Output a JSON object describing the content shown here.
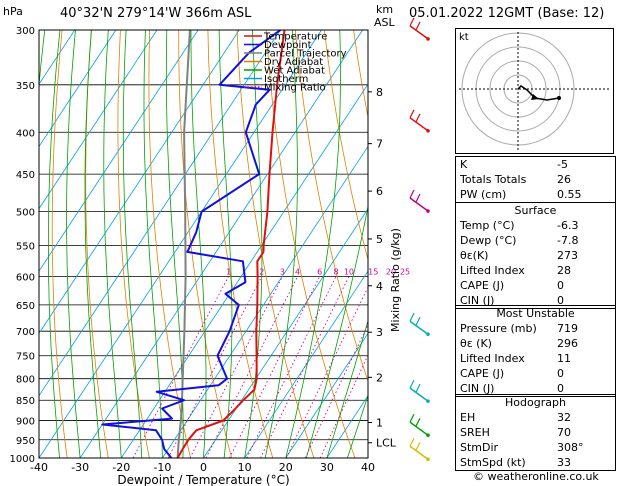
{
  "header": {
    "left_units": "hPa",
    "location": "40°32'N  279°14'W  366m  ASL",
    "km_label": "km",
    "asl_label": "ASL",
    "datetime": "05.01.2022  12GMT  (Base: 12)"
  },
  "chart_data": {
    "type": "line",
    "xlabel": "Dewpoint / Temperature (°C)",
    "ylabel": "hPa",
    "right_axis_label": "Mixing Ratio (g/kg)",
    "xlim": [
      -40,
      40
    ],
    "ylim": [
      1000,
      300
    ],
    "pressure_ticks": [
      300,
      350,
      400,
      450,
      500,
      550,
      600,
      650,
      700,
      750,
      800,
      850,
      900,
      950,
      1000
    ],
    "temperature_ticks": [
      -40,
      -30,
      -20,
      -10,
      0,
      10,
      20,
      30,
      40
    ],
    "km_ticks": [
      {
        "label": "8",
        "p": 357
      },
      {
        "label": "7",
        "p": 413
      },
      {
        "label": "6",
        "p": 472
      },
      {
        "label": "5",
        "p": 540
      },
      {
        "label": "4",
        "p": 616
      },
      {
        "label": "3",
        "p": 702
      },
      {
        "label": "2",
        "p": 797
      },
      {
        "label": "1",
        "p": 905
      },
      {
        "label": "LCL",
        "p": 958
      }
    ],
    "mixing_ratio_labels": [
      "1",
      "2",
      "3",
      "4",
      "6",
      "8",
      "10",
      "15",
      "20",
      "25"
    ],
    "legend": [
      "Temperature",
      "Dewpoint",
      "Parcel Trajectory",
      "Dry Adiabat",
      "Wet Adiabat",
      "Isotherm",
      "Mixing Ratio"
    ],
    "legend_colors": [
      "#e01010",
      "#1010e0",
      "#808080",
      "#e08000",
      "#00a000",
      "#00a0e0",
      "#d000a0"
    ],
    "temperature": [
      {
        "p": 1000,
        "t": -6.3
      },
      {
        "p": 975,
        "t": -6.5
      },
      {
        "p": 950,
        "t": -6.6
      },
      {
        "p": 925,
        "t": -6.2
      },
      {
        "p": 900,
        "t": -1.2
      },
      {
        "p": 875,
        "t": -0.3
      },
      {
        "p": 850,
        "t": 0.4
      },
      {
        "p": 825,
        "t": 1.4
      },
      {
        "p": 800,
        "t": 0.2
      },
      {
        "p": 750,
        "t": -3.5
      },
      {
        "p": 700,
        "t": -7.5
      },
      {
        "p": 650,
        "t": -11.5
      },
      {
        "p": 600,
        "t": -16
      },
      {
        "p": 575,
        "t": -18.5
      },
      {
        "p": 560,
        "t": -18.5
      },
      {
        "p": 550,
        "t": -19.5
      },
      {
        "p": 500,
        "t": -24
      },
      {
        "p": 450,
        "t": -29.5
      },
      {
        "p": 400,
        "t": -35.5
      },
      {
        "p": 350,
        "t": -42
      },
      {
        "p": 300,
        "t": -49
      }
    ],
    "dewpoint": [
      {
        "p": 1000,
        "t": -7.8
      },
      {
        "p": 975,
        "t": -11
      },
      {
        "p": 950,
        "t": -13
      },
      {
        "p": 925,
        "t": -16
      },
      {
        "p": 910,
        "t": -30
      },
      {
        "p": 895,
        "t": -14
      },
      {
        "p": 870,
        "t": -18
      },
      {
        "p": 850,
        "t": -14
      },
      {
        "p": 830,
        "t": -22
      },
      {
        "p": 815,
        "t": -8
      },
      {
        "p": 800,
        "t": -7
      },
      {
        "p": 750,
        "t": -13
      },
      {
        "p": 700,
        "t": -14
      },
      {
        "p": 650,
        "t": -16
      },
      {
        "p": 630,
        "t": -21
      },
      {
        "p": 610,
        "t": -18
      },
      {
        "p": 575,
        "t": -22
      },
      {
        "p": 560,
        "t": -37
      },
      {
        "p": 530,
        "t": -38
      },
      {
        "p": 500,
        "t": -40
      },
      {
        "p": 450,
        "t": -32
      },
      {
        "p": 400,
        "t": -42
      },
      {
        "p": 370,
        "t": -44
      },
      {
        "p": 355,
        "t": -43
      },
      {
        "p": 350,
        "t": -56
      },
      {
        "p": 320,
        "t": -54
      },
      {
        "p": 300,
        "t": -50
      }
    ],
    "parcel": [
      {
        "p": 1000,
        "t": -6.3
      },
      {
        "p": 958,
        "t": -8.5
      },
      {
        "p": 900,
        "t": -11.5
      },
      {
        "p": 850,
        "t": -14.5
      },
      {
        "p": 800,
        "t": -17.8
      },
      {
        "p": 700,
        "t": -25
      },
      {
        "p": 600,
        "t": -33.5
      },
      {
        "p": 500,
        "t": -44
      },
      {
        "p": 400,
        "t": -57
      },
      {
        "p": 300,
        "t": -72
      }
    ],
    "hodograph": {
      "unit_label": "kt"
    }
  },
  "indices": [
    {
      "label": "K",
      "value": "-5"
    },
    {
      "label": "Totals Totals",
      "value": "26"
    },
    {
      "label": "PW (cm)",
      "value": "0.55"
    }
  ],
  "surface": {
    "title": "Surface",
    "rows": [
      {
        "label": "Temp (°C)",
        "value": "-6.3"
      },
      {
        "label": "Dewp (°C)",
        "value": "-7.8"
      },
      {
        "label": "θε(K)",
        "value": "273"
      },
      {
        "label": "Lifted Index",
        "value": "28"
      },
      {
        "label": "CAPE (J)",
        "value": "0"
      },
      {
        "label": "CIN (J)",
        "value": "0"
      }
    ]
  },
  "most_unstable": {
    "title": "Most Unstable",
    "rows": [
      {
        "label": "Pressure (mb)",
        "value": "719"
      },
      {
        "label": "θε (K)",
        "value": "296"
      },
      {
        "label": "Lifted Index",
        "value": "11"
      },
      {
        "label": "CAPE (J)",
        "value": "0"
      },
      {
        "label": "CIN (J)",
        "value": "0"
      }
    ]
  },
  "hodograph_table": {
    "title": "Hodograph",
    "rows": [
      {
        "label": "EH",
        "value": "32"
      },
      {
        "label": "SREH",
        "value": "70"
      },
      {
        "label": "StmDir",
        "value": "308°"
      },
      {
        "label": "StmSpd (kt)",
        "value": "33"
      }
    ]
  },
  "credit": "© weatheronline.co.uk"
}
